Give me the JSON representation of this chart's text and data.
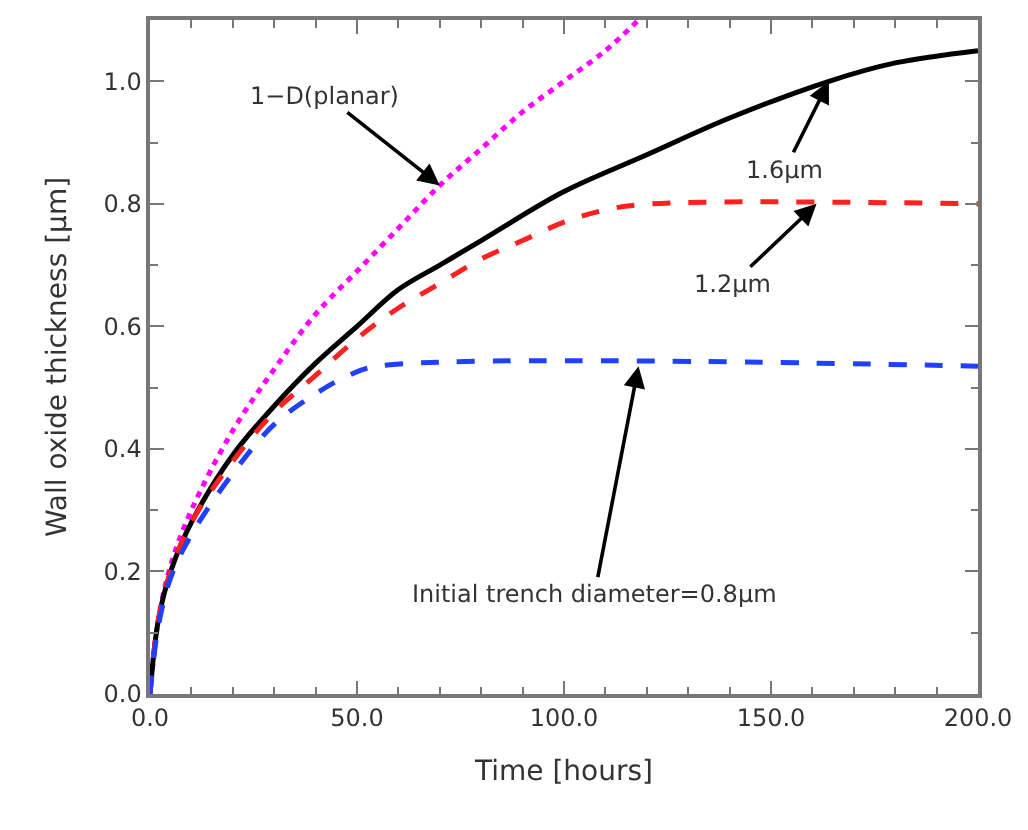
{
  "chart_data": {
    "type": "line",
    "xlabel": "Time [hours]",
    "ylabel": "Wall oxide thickness [μm]",
    "xlim": [
      0,
      200
    ],
    "ylim": [
      0,
      1.1
    ],
    "xticks": [
      {
        "value": 0,
        "label": "0.0"
      },
      {
        "value": 50,
        "label": "50.0"
      },
      {
        "value": 100,
        "label": "100.0"
      },
      {
        "value": 150,
        "label": "150.0"
      },
      {
        "value": 200,
        "label": "200.0"
      }
    ],
    "yticks": [
      {
        "value": 0,
        "label": "0.0"
      },
      {
        "value": 0.2,
        "label": "0.2"
      },
      {
        "value": 0.4,
        "label": "0.4"
      },
      {
        "value": 0.6,
        "label": "0.6"
      },
      {
        "value": 0.8,
        "label": "0.8"
      },
      {
        "value": 1.0,
        "label": "1.0"
      }
    ],
    "marker": "none",
    "series": [
      {
        "color": "#ff00ff",
        "line_style": "dotted",
        "x": [
          0,
          2,
          5,
          10,
          20,
          30,
          40,
          50,
          60,
          70,
          80,
          90,
          100,
          110,
          118
        ],
        "values": [
          0,
          0.12,
          0.21,
          0.3,
          0.43,
          0.53,
          0.62,
          0.69,
          0.76,
          0.83,
          0.89,
          0.95,
          1.0,
          1.05,
          1.1
        ]
      },
      {
        "color": "#000000",
        "line_style": "solid",
        "x": [
          0,
          2,
          5,
          10,
          20,
          30,
          40,
          50,
          60,
          70,
          80,
          100,
          120,
          140,
          164,
          180,
          200
        ],
        "values": [
          0,
          0.12,
          0.2,
          0.28,
          0.39,
          0.47,
          0.54,
          0.6,
          0.66,
          0.7,
          0.74,
          0.82,
          0.88,
          0.94,
          1.0,
          1.03,
          1.05
        ]
      },
      {
        "color": "#ff2020",
        "line_style": "dashed",
        "x": [
          0,
          2,
          5,
          10,
          20,
          30,
          40,
          50,
          60,
          70,
          80,
          90,
          100,
          110,
          121,
          200
        ],
        "values": [
          0,
          0.12,
          0.2,
          0.28,
          0.38,
          0.46,
          0.52,
          0.58,
          0.63,
          0.67,
          0.71,
          0.74,
          0.77,
          0.79,
          0.8,
          0.8
        ]
      },
      {
        "color": "#2040ff",
        "line_style": "dashed",
        "x": [
          0,
          2,
          5,
          10,
          20,
          30,
          40,
          48,
          55,
          200
        ],
        "values": [
          0,
          0.11,
          0.19,
          0.26,
          0.36,
          0.44,
          0.49,
          0.52,
          0.535,
          0.535
        ]
      }
    ],
    "annotations": [
      {
        "text": "1−D(planar)",
        "x": 70,
        "y": 0.83
      },
      {
        "text": "1.6μm",
        "x": 164,
        "y": 1.0
      },
      {
        "text": "1.2μm",
        "x": 161,
        "y": 0.8
      },
      {
        "text": "Initial trench diameter=0.8μm",
        "x": 118,
        "y": 0.535
      }
    ]
  }
}
